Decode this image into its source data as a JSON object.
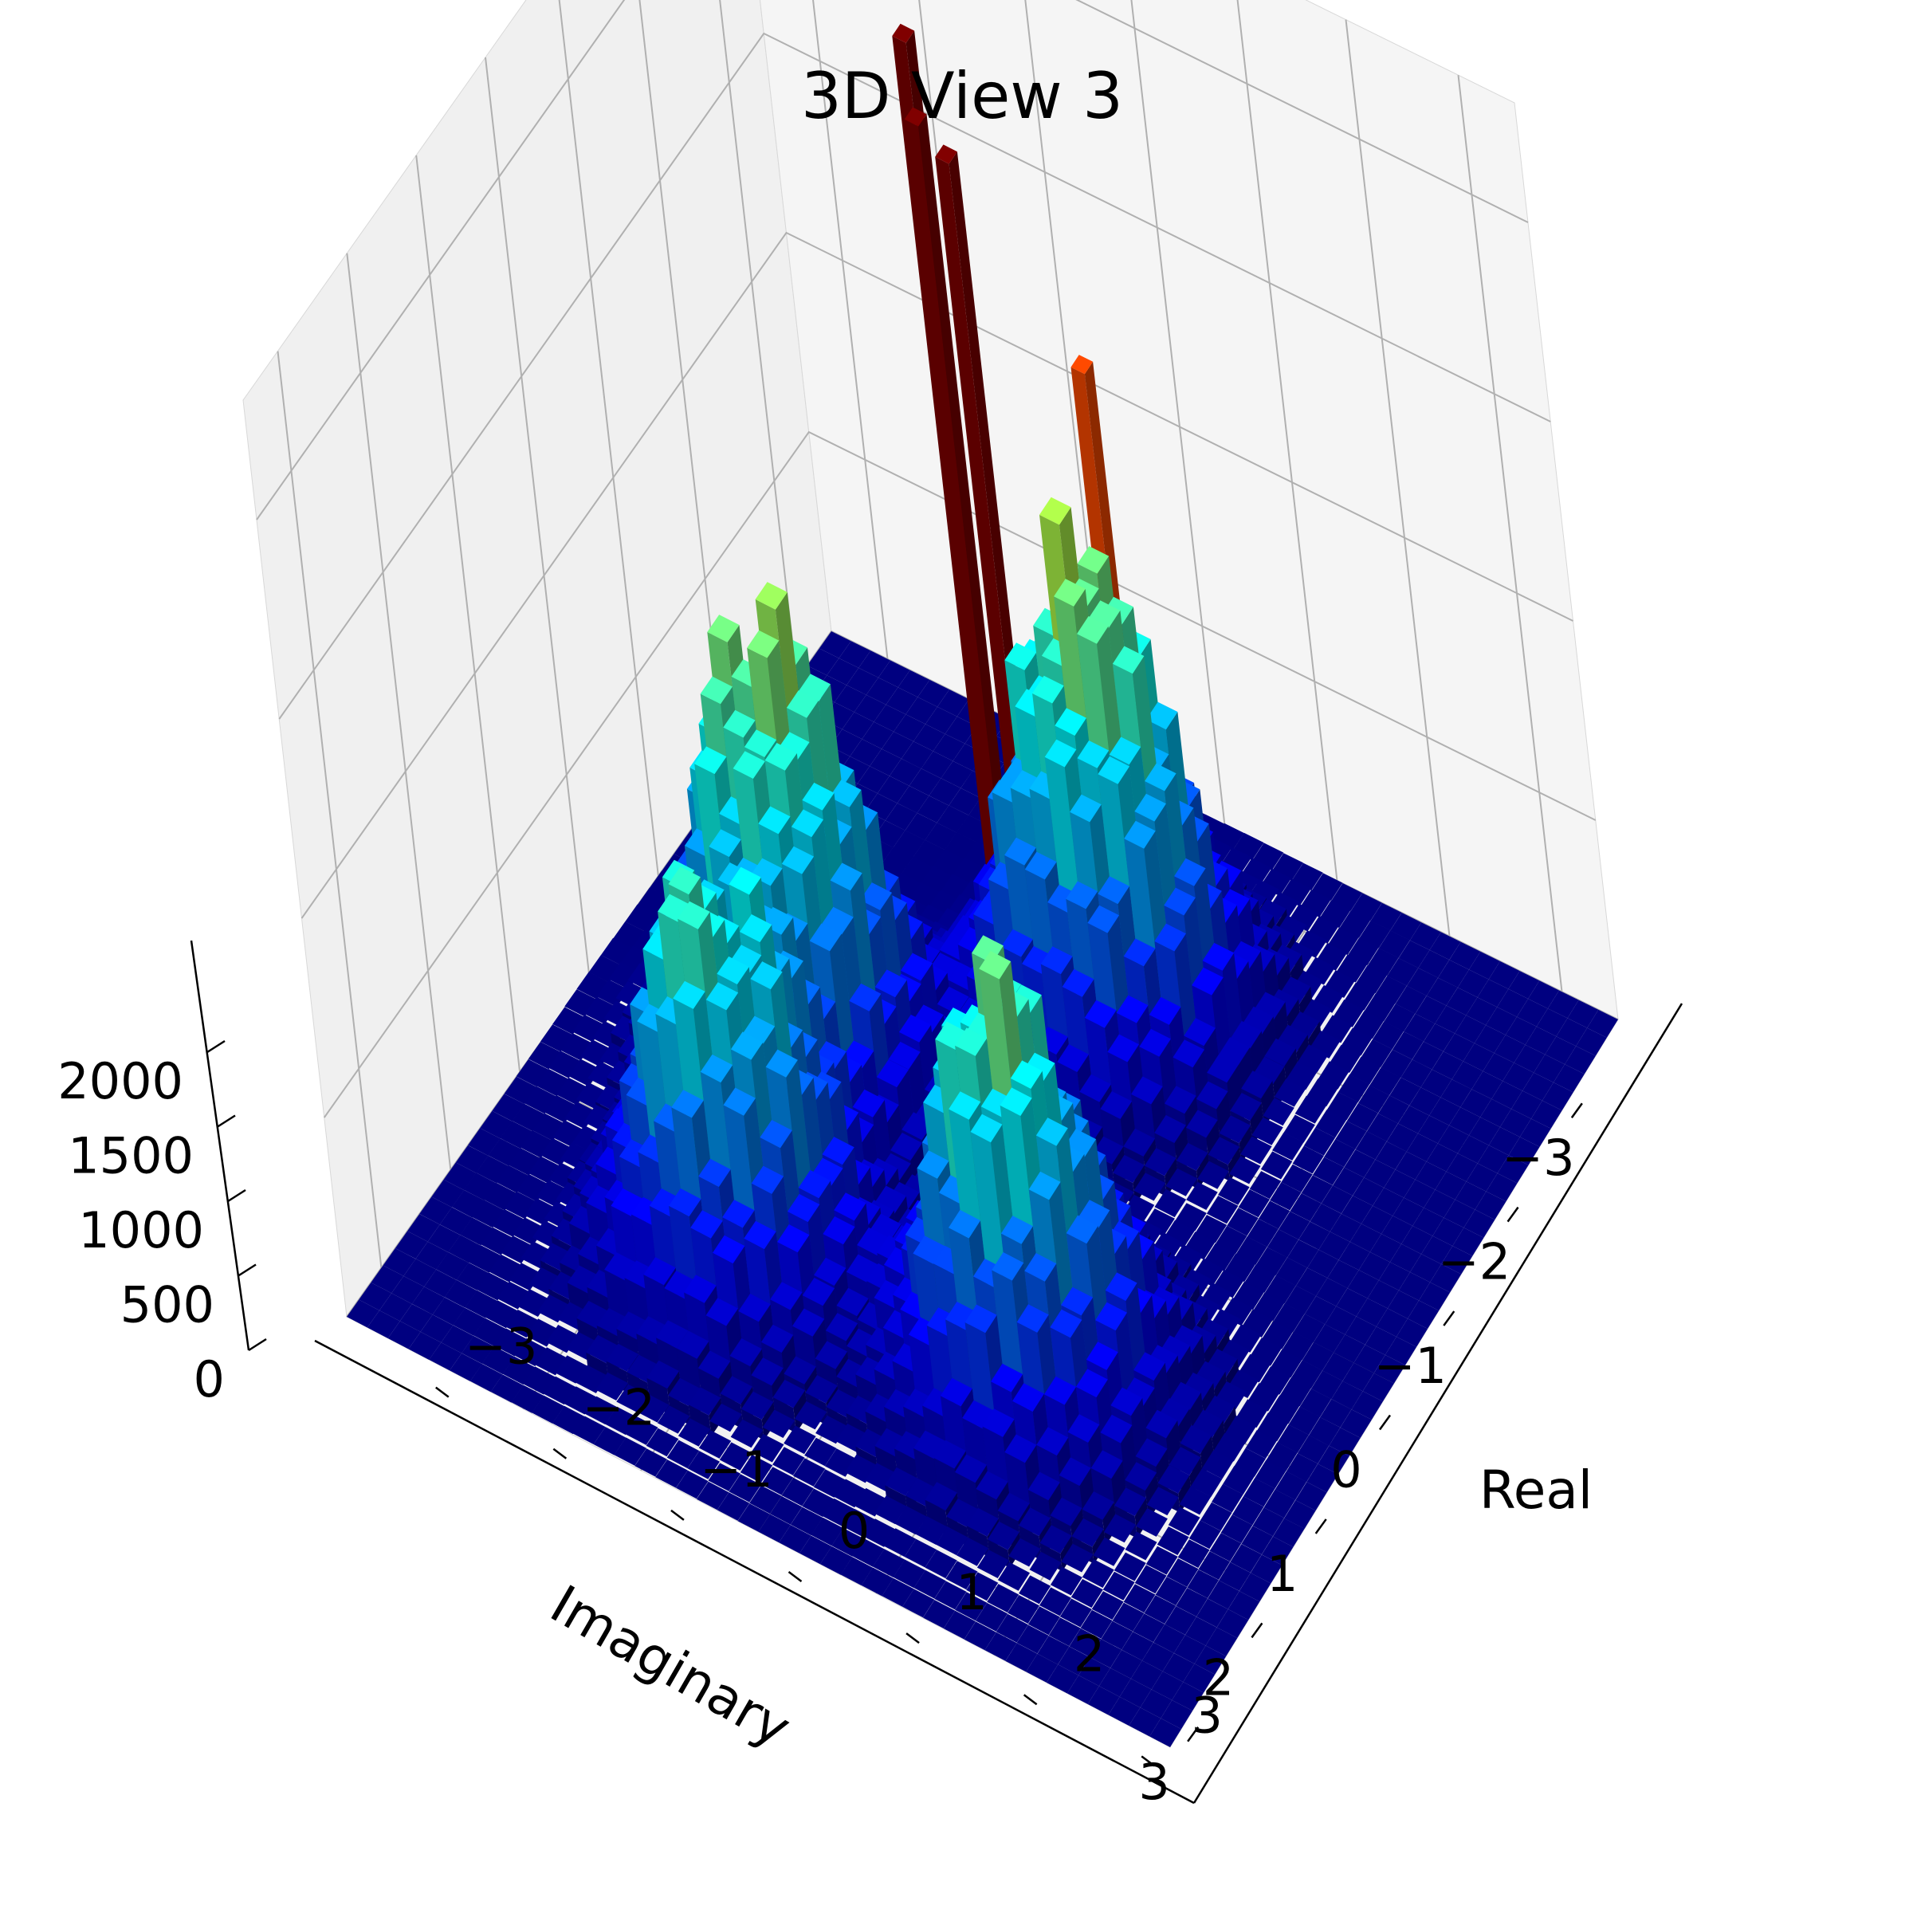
{
  "chart_data": {
    "type": "bar3d",
    "title": "3D View 3",
    "xlabel": "Real",
    "ylabel": "Imaginary",
    "zlabel": "",
    "x_ticks": [
      "−3",
      "−2",
      "−1",
      "0",
      "1",
      "2",
      "3"
    ],
    "y_ticks": [
      "−3",
      "−2",
      "−1",
      "0",
      "1",
      "2",
      "3"
    ],
    "z_ticks": [
      "0",
      "500",
      "1000",
      "1500",
      "2000"
    ],
    "xlim": [
      -3.5,
      3.5
    ],
    "ylim": [
      -3.5,
      3.5
    ],
    "zlim": [
      0,
      2300
    ],
    "colormap": "jet",
    "grid": true,
    "distribution": {
      "description": "2D histogram of complex values, four lobes around the origin",
      "lobes": [
        {
          "real": -1.6,
          "imag": 0.0,
          "peak": 1100
        },
        {
          "real": 0.2,
          "imag": -1.6,
          "peak": 1150
        },
        {
          "real": 1.2,
          "imag": 1.4,
          "peak": 1000
        },
        {
          "real": -1.2,
          "imag": 1.6,
          "peak": 950
        }
      ],
      "spikes": [
        {
          "real": -1.0,
          "imag": -1.9,
          "value": 2250
        },
        {
          "real": -0.9,
          "imag": -1.8,
          "value": 2080
        },
        {
          "real": -0.8,
          "imag": -2.0,
          "value": 1950
        },
        {
          "real": 0.1,
          "imag": -2.2,
          "value": 1500
        }
      ]
    },
    "colors": {
      "low": "#00007f",
      "mid": "#00b0ff",
      "high_mid": "#d4e000",
      "high": "#800000",
      "pane": "#f2f2f2",
      "grid": "#b0b0b0"
    }
  }
}
